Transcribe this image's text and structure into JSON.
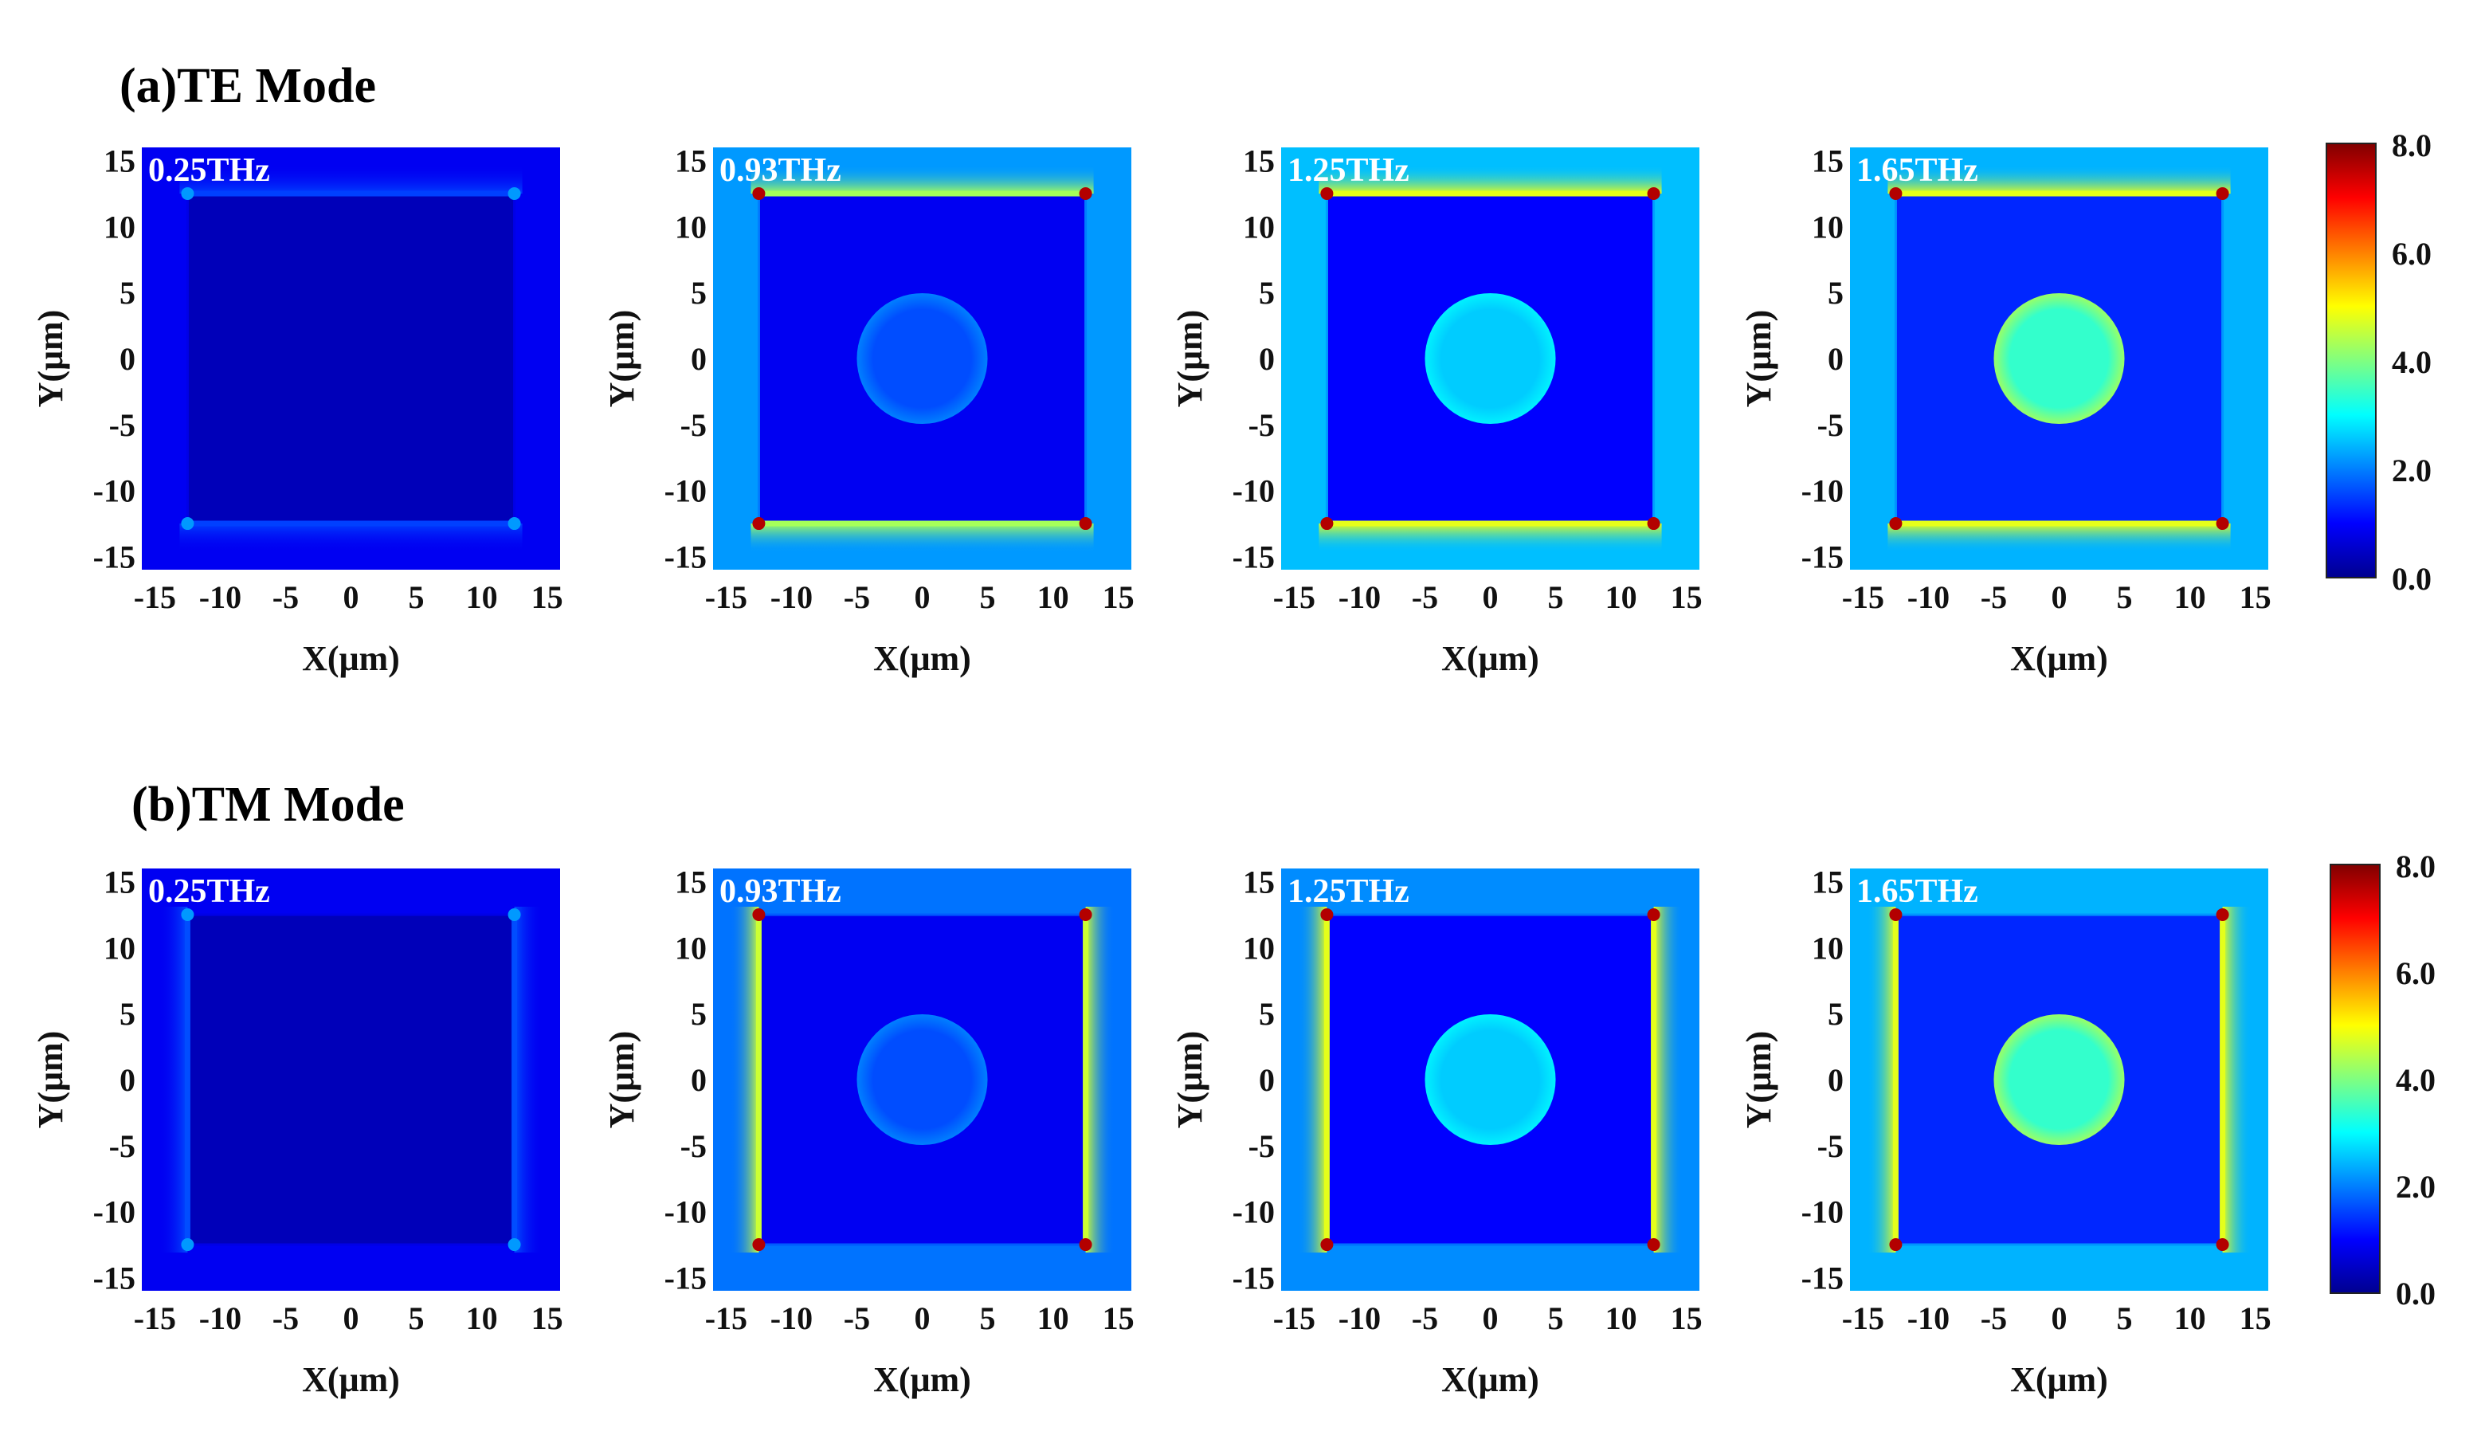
{
  "chart_data": {
    "type": "heatmap",
    "colormap": "jet",
    "colorbar": {
      "min": 0.0,
      "max": 8.0,
      "tick_labels": [
        "8.0",
        "6.0",
        "4.0",
        "2.0",
        "0.0"
      ]
    },
    "x_label": "X(μm)",
    "y_label": "Y(μm)",
    "x_ticks": [
      "-15",
      "-10",
      "-5",
      "0",
      "5",
      "10",
      "15"
    ],
    "y_ticks": [
      "15",
      "10",
      "5",
      "0",
      "-5",
      "-10",
      "-15"
    ],
    "xlim": [
      -16,
      16
    ],
    "ylim": [
      -16,
      16
    ],
    "structure": {
      "square_half_width": 12.5,
      "disk_radius": 5
    },
    "rows": [
      {
        "title": "(a)TE Mode",
        "mode": "TE",
        "panels": [
          {
            "frequency": "0.25THz",
            "bg": 0.9,
            "inside": 0.45,
            "edge": 1.5,
            "corner": 2.2,
            "disk": 0.0,
            "disk_rim": 0.0
          },
          {
            "frequency": "0.93THz",
            "bg": 2.2,
            "inside": 0.9,
            "edge": 4.3,
            "corner": 7.6,
            "disk": 1.6,
            "disk_rim": 2.0
          },
          {
            "frequency": "1.25THz",
            "bg": 2.5,
            "inside": 1.0,
            "edge": 4.8,
            "corner": 7.6,
            "disk": 2.6,
            "disk_rim": 2.9
          },
          {
            "frequency": "1.65THz",
            "bg": 2.4,
            "inside": 1.3,
            "edge": 4.8,
            "corner": 7.6,
            "disk": 3.4,
            "disk_rim": 4.2
          }
        ]
      },
      {
        "title": "(b)TM Mode",
        "mode": "TM",
        "panels": [
          {
            "frequency": "0.25THz",
            "bg": 0.9,
            "inside": 0.45,
            "edge": 1.6,
            "corner": 2.2,
            "disk": 0.0,
            "disk_rim": 0.0
          },
          {
            "frequency": "0.93THz",
            "bg": 1.9,
            "inside": 0.9,
            "edge": 4.6,
            "corner": 7.6,
            "disk": 1.6,
            "disk_rim": 2.0
          },
          {
            "frequency": "1.25THz",
            "bg": 2.1,
            "inside": 1.0,
            "edge": 4.8,
            "corner": 7.6,
            "disk": 2.6,
            "disk_rim": 2.9
          },
          {
            "frequency": "1.65THz",
            "bg": 2.4,
            "inside": 1.3,
            "edge": 4.8,
            "corner": 7.6,
            "disk": 3.4,
            "disk_rim": 4.2
          }
        ]
      }
    ]
  }
}
